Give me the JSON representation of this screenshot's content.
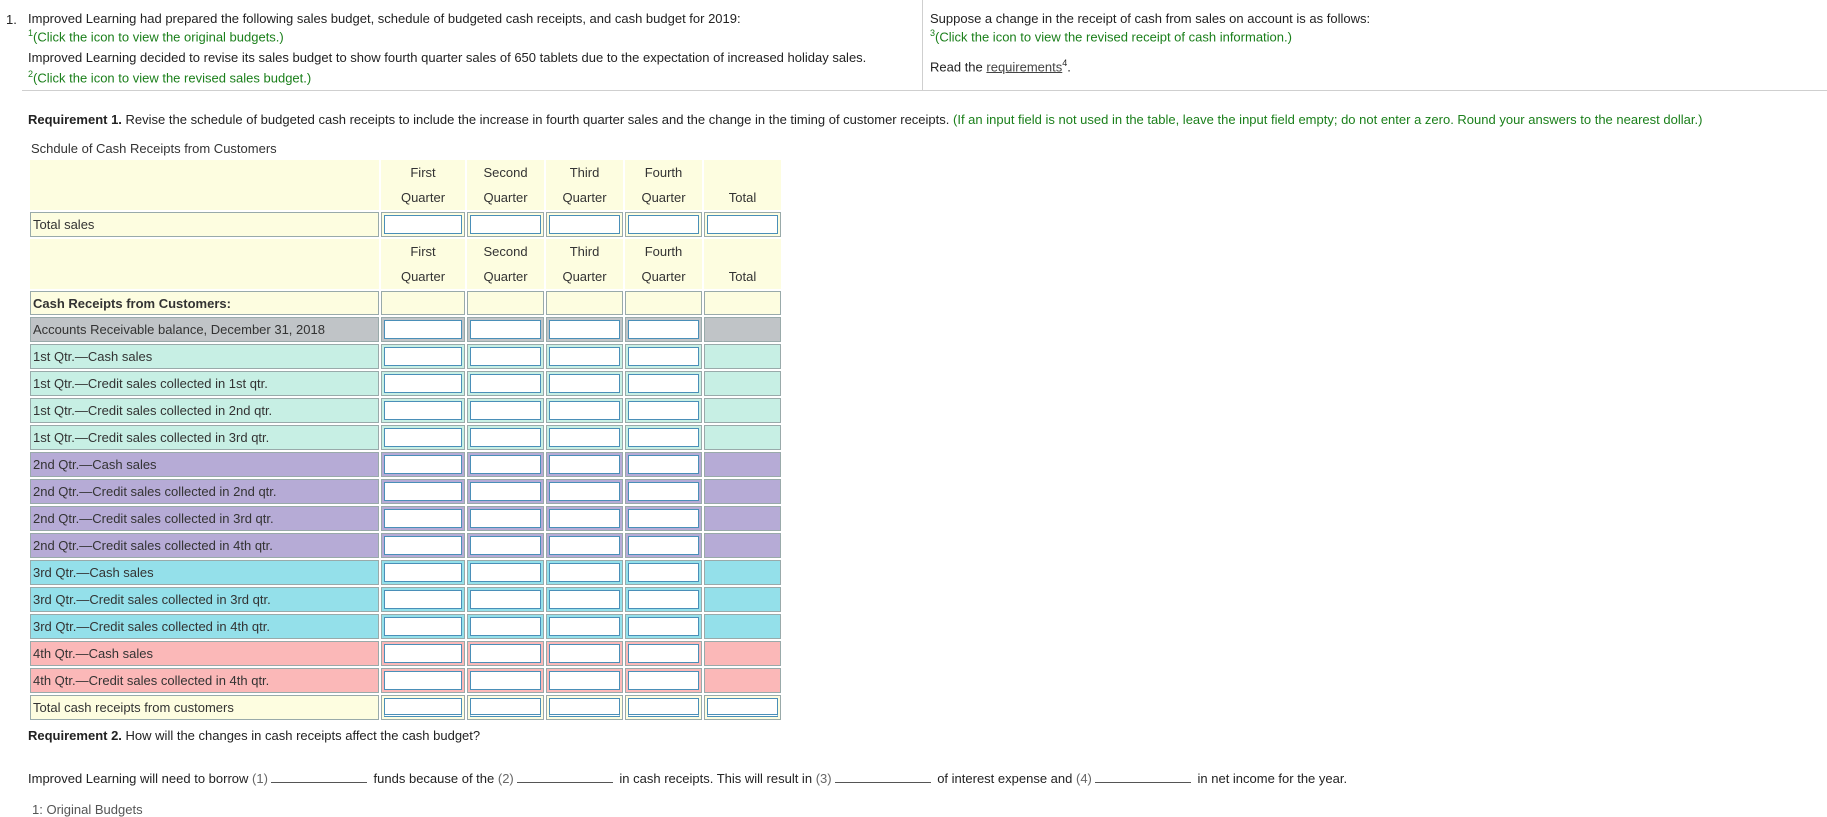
{
  "question_number": "1.",
  "intro": {
    "line1": "Improved Learning had prepared the following sales budget, schedule of budgeted cash receipts, and cash budget for 2019:",
    "link1_sup": "1",
    "link1": "(Click the icon to view the original budgets.)",
    "line2": "Improved Learning decided to revise its sales budget to show fourth quarter sales of 650 tablets due to the expectation of increased holiday sales.",
    "link2_sup": "2",
    "link2": "(Click the icon to view the revised sales budget.)"
  },
  "right_panel": {
    "line1": "Suppose a change in the receipt of cash from sales on account is as follows:",
    "link3_sup": "3",
    "link3": "(Click the icon to view the revised receipt of cash information.)",
    "read_prefix": "Read the",
    "requirements_link": "requirements",
    "requirements_sup": "4",
    "read_suffix": "."
  },
  "requirement1": {
    "label": "Requirement 1.",
    "text": "Revise the schedule of budgeted cash receipts to include the increase in fourth quarter sales and the change in the timing of customer receipts.",
    "note": "(If an input field is not used in the table, leave the input field empty; do not enter a zero. Round your answers to the nearest dollar.)"
  },
  "table": {
    "title": "Schdule of Cash Receipts from Customers",
    "columns": [
      {
        "top": "First",
        "bottom": "Quarter"
      },
      {
        "top": "Second",
        "bottom": "Quarter"
      },
      {
        "top": "Third",
        "bottom": "Quarter"
      },
      {
        "top": "Fourth",
        "bottom": "Quarter"
      },
      {
        "top": "",
        "bottom": "Total"
      }
    ],
    "total_sales_label": "Total sales",
    "section_label": "Cash Receipts from Customers:",
    "rows": [
      "Accounts Receivable balance, December 31, 2018",
      "1st Qtr.—Cash sales",
      "1st Qtr.—Credit sales collected in 1st qtr.",
      "1st Qtr.—Credit sales collected in 2nd qtr.",
      "1st Qtr.—Credit sales collected in 3rd qtr.",
      "2nd Qtr.—Cash sales",
      "2nd Qtr.—Credit sales collected in 2nd qtr.",
      "2nd Qtr.—Credit sales collected in 3rd qtr.",
      "2nd Qtr.—Credit sales collected in 4th qtr.",
      "3rd Qtr.—Cash sales",
      "3rd Qtr.—Credit sales collected in 3rd qtr.",
      "3rd Qtr.—Credit sales collected in 4th qtr.",
      "4th Qtr.—Cash sales",
      "4th Qtr.—Credit sales collected in 4th qtr."
    ],
    "total_receipts_label": "Total cash receipts from customers"
  },
  "requirement2": {
    "label": "Requirement 2.",
    "text": "How will the changes in cash receipts affect the cash budget?",
    "s1": "Improved Learning will need to borrow",
    "n1": "(1)",
    "s2": "funds because of the",
    "n2": "(2)",
    "s3": "in cash receipts. This will result in",
    "n3": "(3)",
    "s4": "of interest expense and",
    "n4": "(4)",
    "s5": "in net income for the year."
  },
  "footer": "1: Original Budgets",
  "colors": {
    "yellow": "#fdfde0",
    "gray": "#c0c4c7",
    "mint": "#c7efe4",
    "purple": "#b6abd6",
    "cyan": "#94e0ea",
    "pink": "#fbb8b8",
    "link_green": "#1a7f1a"
  }
}
